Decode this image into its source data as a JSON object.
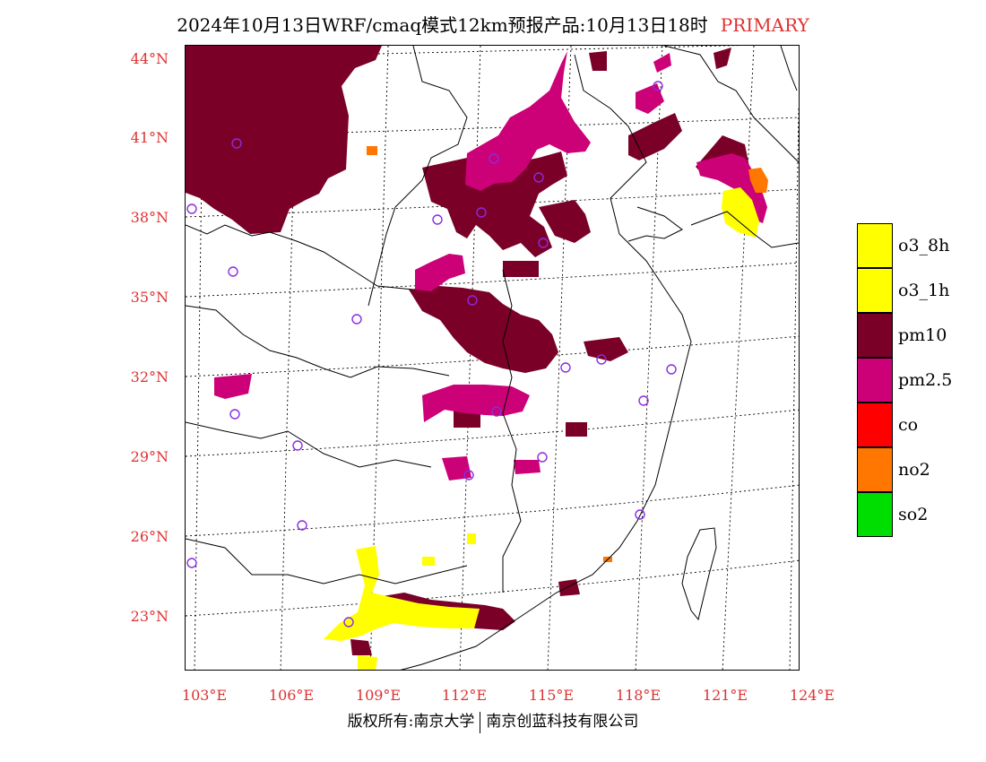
{
  "title": {
    "main": "2024年10月13日WRF/cmaq模式12km预报产品:10月13日18时",
    "tag": "PRIMARY"
  },
  "axes": {
    "lat_labels": [
      "44°N",
      "41°N",
      "38°N",
      "35°N",
      "32°N",
      "29°N",
      "26°N",
      "23°N"
    ],
    "lon_labels": [
      "103°E",
      "106°E",
      "109°E",
      "112°E",
      "115°E",
      "118°E",
      "121°E",
      "124°E"
    ]
  },
  "legend": [
    {
      "label": "o3_8h",
      "color": "#ffff00"
    },
    {
      "label": "o3_1h",
      "color": "#ffff00"
    },
    {
      "label": "pm10",
      "color": "#7a0028"
    },
    {
      "label": "pm2.5",
      "color": "#cc0077"
    },
    {
      "label": "co",
      "color": "#ff0000"
    },
    {
      "label": "no2",
      "color": "#ff7700"
    },
    {
      "label": "so2",
      "color": "#00dd00"
    }
  ],
  "footer": {
    "left": "版权所有:南京大学",
    "right": "南京创蓝科技有限公司"
  },
  "colors": {
    "accent": "#e03030",
    "pm10": "#7a0028",
    "pm25": "#cc0077",
    "o3": "#ffff00",
    "no2": "#ff7700",
    "station": "#8a2be2"
  }
}
